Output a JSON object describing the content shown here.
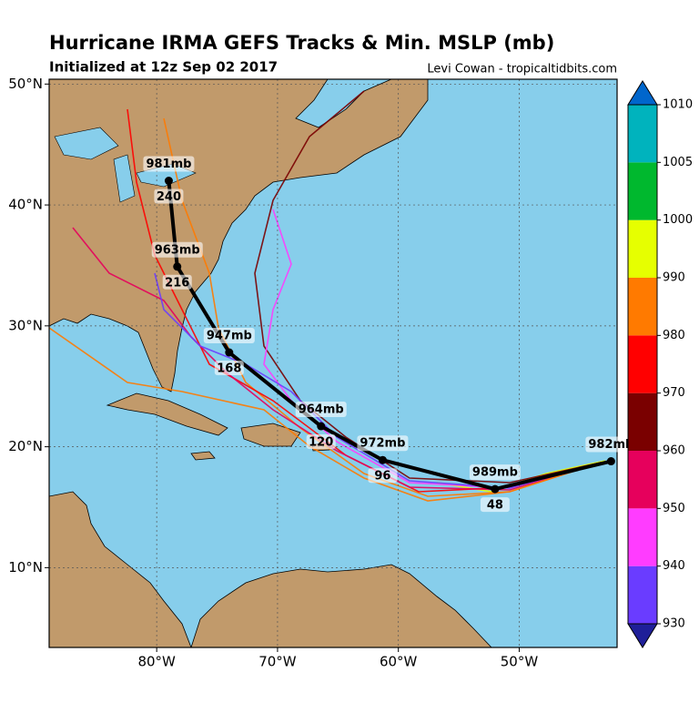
{
  "map": {
    "title": "Hurricane IRMA GEFS Tracks & Min. MSLP (mb)",
    "subtitle": "Initialized at 12z Sep 02 2017",
    "credit": "Levi Cowan - tropicaltidbits.com",
    "xlim": [
      -88.9,
      -41.9
    ],
    "ylim": [
      3.4,
      50.4
    ],
    "xticks": [
      {
        "value": -80,
        "label": "80°W"
      },
      {
        "value": -70,
        "label": "70°W"
      },
      {
        "value": -60,
        "label": "60°W"
      },
      {
        "value": -50,
        "label": "50°W"
      }
    ],
    "yticks": [
      {
        "value": 10,
        "label": "10°N"
      },
      {
        "value": 20,
        "label": "20°N"
      },
      {
        "value": 30,
        "label": "30°N"
      },
      {
        "value": 40,
        "label": "40°N"
      },
      {
        "value": 50,
        "label": "50°N"
      }
    ],
    "grid": true,
    "track": {
      "lon": [
        -42.4,
        -52.0,
        -61.3,
        -66.4,
        -74.0,
        -78.3,
        -79.0
      ],
      "lat": [
        18.8,
        16.5,
        18.9,
        21.7,
        27.8,
        34.9,
        42.0
      ],
      "pressure": [
        982,
        989,
        972,
        964,
        947,
        963,
        981
      ],
      "pressure_labels": [
        "982mb",
        "989mb",
        "972mb",
        "964mb",
        "947mb",
        "963mb",
        "981mb"
      ],
      "hours": [
        null,
        48,
        96,
        120,
        168,
        216,
        240
      ],
      "color": "#000000"
    },
    "colorbar": {
      "levels": [
        930,
        940,
        950,
        960,
        970,
        980,
        990,
        1000,
        1005,
        1010
      ],
      "colors": [
        "#1f1f99",
        "#6a3cff",
        "#ff3cff",
        "#e6005c",
        "#7a0000",
        "#ff0000",
        "#ff7a00",
        "#e6ff00",
        "#00b82e",
        "#00b3bd",
        "#0066cc"
      ]
    }
  }
}
